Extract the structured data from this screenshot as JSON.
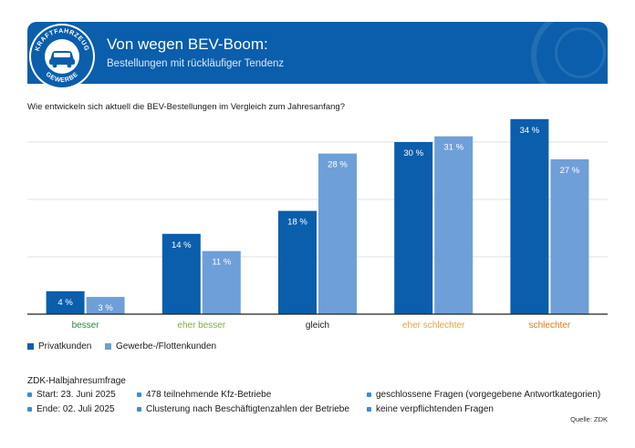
{
  "header": {
    "title": "Von wegen BEV-Boom:",
    "subtitle": "Bestellungen mit rückläufiger Tendenz",
    "logo_top_text": "KRAFTFAHRZEUG",
    "logo_bottom_text": "GEWERBE",
    "color": "#0a5eab"
  },
  "question": "Wie entwickeln sich aktuell die BEV-Bestellungen im Vergleich zum Jahresanfang?",
  "chart_data": {
    "type": "bar",
    "categories": [
      "besser",
      "eher besser",
      "gleich",
      "eher schlechter",
      "schlechter"
    ],
    "category_colors": [
      "#2a8a3e",
      "#7fae3c",
      "#1a1a1a",
      "#e8a33a",
      "#e07b10"
    ],
    "series": [
      {
        "name": "Privatkunden",
        "values": [
          4,
          14,
          18,
          30,
          34
        ],
        "labels": [
          "4 %",
          "14 %",
          "18 %",
          "30 %",
          "34 %"
        ],
        "color": "#0a5eab"
      },
      {
        "name": "Gewerbe-/Flottenkunden",
        "values": [
          3,
          11,
          28,
          31,
          27
        ],
        "labels": [
          "3 %",
          "11 %",
          "28 %",
          "31 %",
          "27 %"
        ],
        "color": "#6f9fd8"
      }
    ],
    "ylim": [
      0,
      35
    ],
    "grid": true,
    "legend_position": "bottom-left"
  },
  "survey": {
    "title": "ZDK-Halbjahresumfrage",
    "items": [
      "Start: 23. Juni 2025",
      "Ende: 02. Juli 2025",
      "478 teilnehmende Kfz-Betriebe",
      "Clusterung nach Beschäftigtenzahlen der Betriebe",
      "geschlossene Fragen (vorgegebene Antwortkategorien)",
      "keine verpflichtenden Fragen"
    ]
  },
  "source": "Quelle: ZDK"
}
